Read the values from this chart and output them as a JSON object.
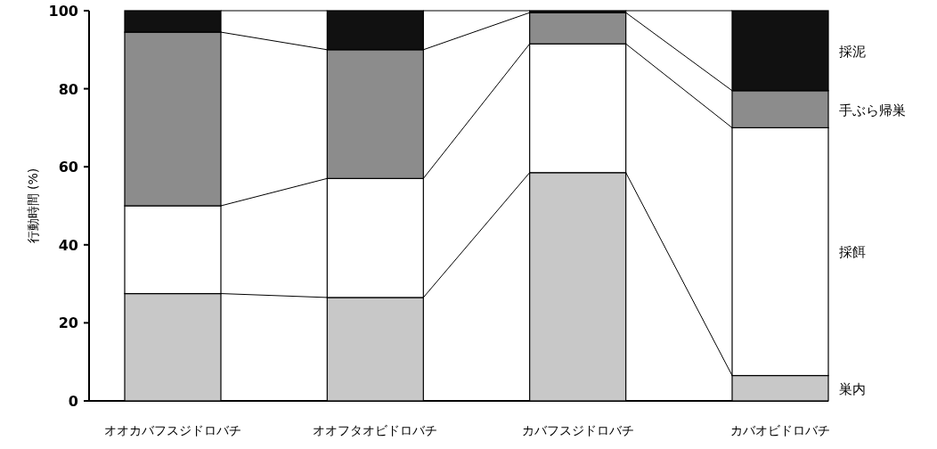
{
  "chart_data": {
    "type": "bar",
    "stacked": true,
    "ylabel": "行動時間 (%)",
    "categories": [
      "オオカバフスジドロバチ",
      "オオフタオビドロバチ",
      "カバフスジドロバチ",
      "カバオビドロバチ"
    ],
    "series": [
      {
        "name": "巣内",
        "color": "#c8c8c8",
        "values": [
          27.5,
          26.5,
          58.5,
          6.5
        ]
      },
      {
        "name": "採餌",
        "color": "#ffffff",
        "values": [
          22.5,
          30.5,
          33,
          63.5
        ]
      },
      {
        "name": "手ぶら帰巣",
        "color": "#8c8c8c",
        "values": [
          44.5,
          33,
          8,
          9.5
        ]
      },
      {
        "name": "採泥",
        "color": "#111111",
        "values": [
          5.5,
          10,
          0.5,
          20.5
        ]
      }
    ],
    "ylim": [
      0,
      100
    ],
    "yticks": [
      0,
      20,
      40,
      60,
      80,
      100
    ],
    "legend": "right"
  }
}
